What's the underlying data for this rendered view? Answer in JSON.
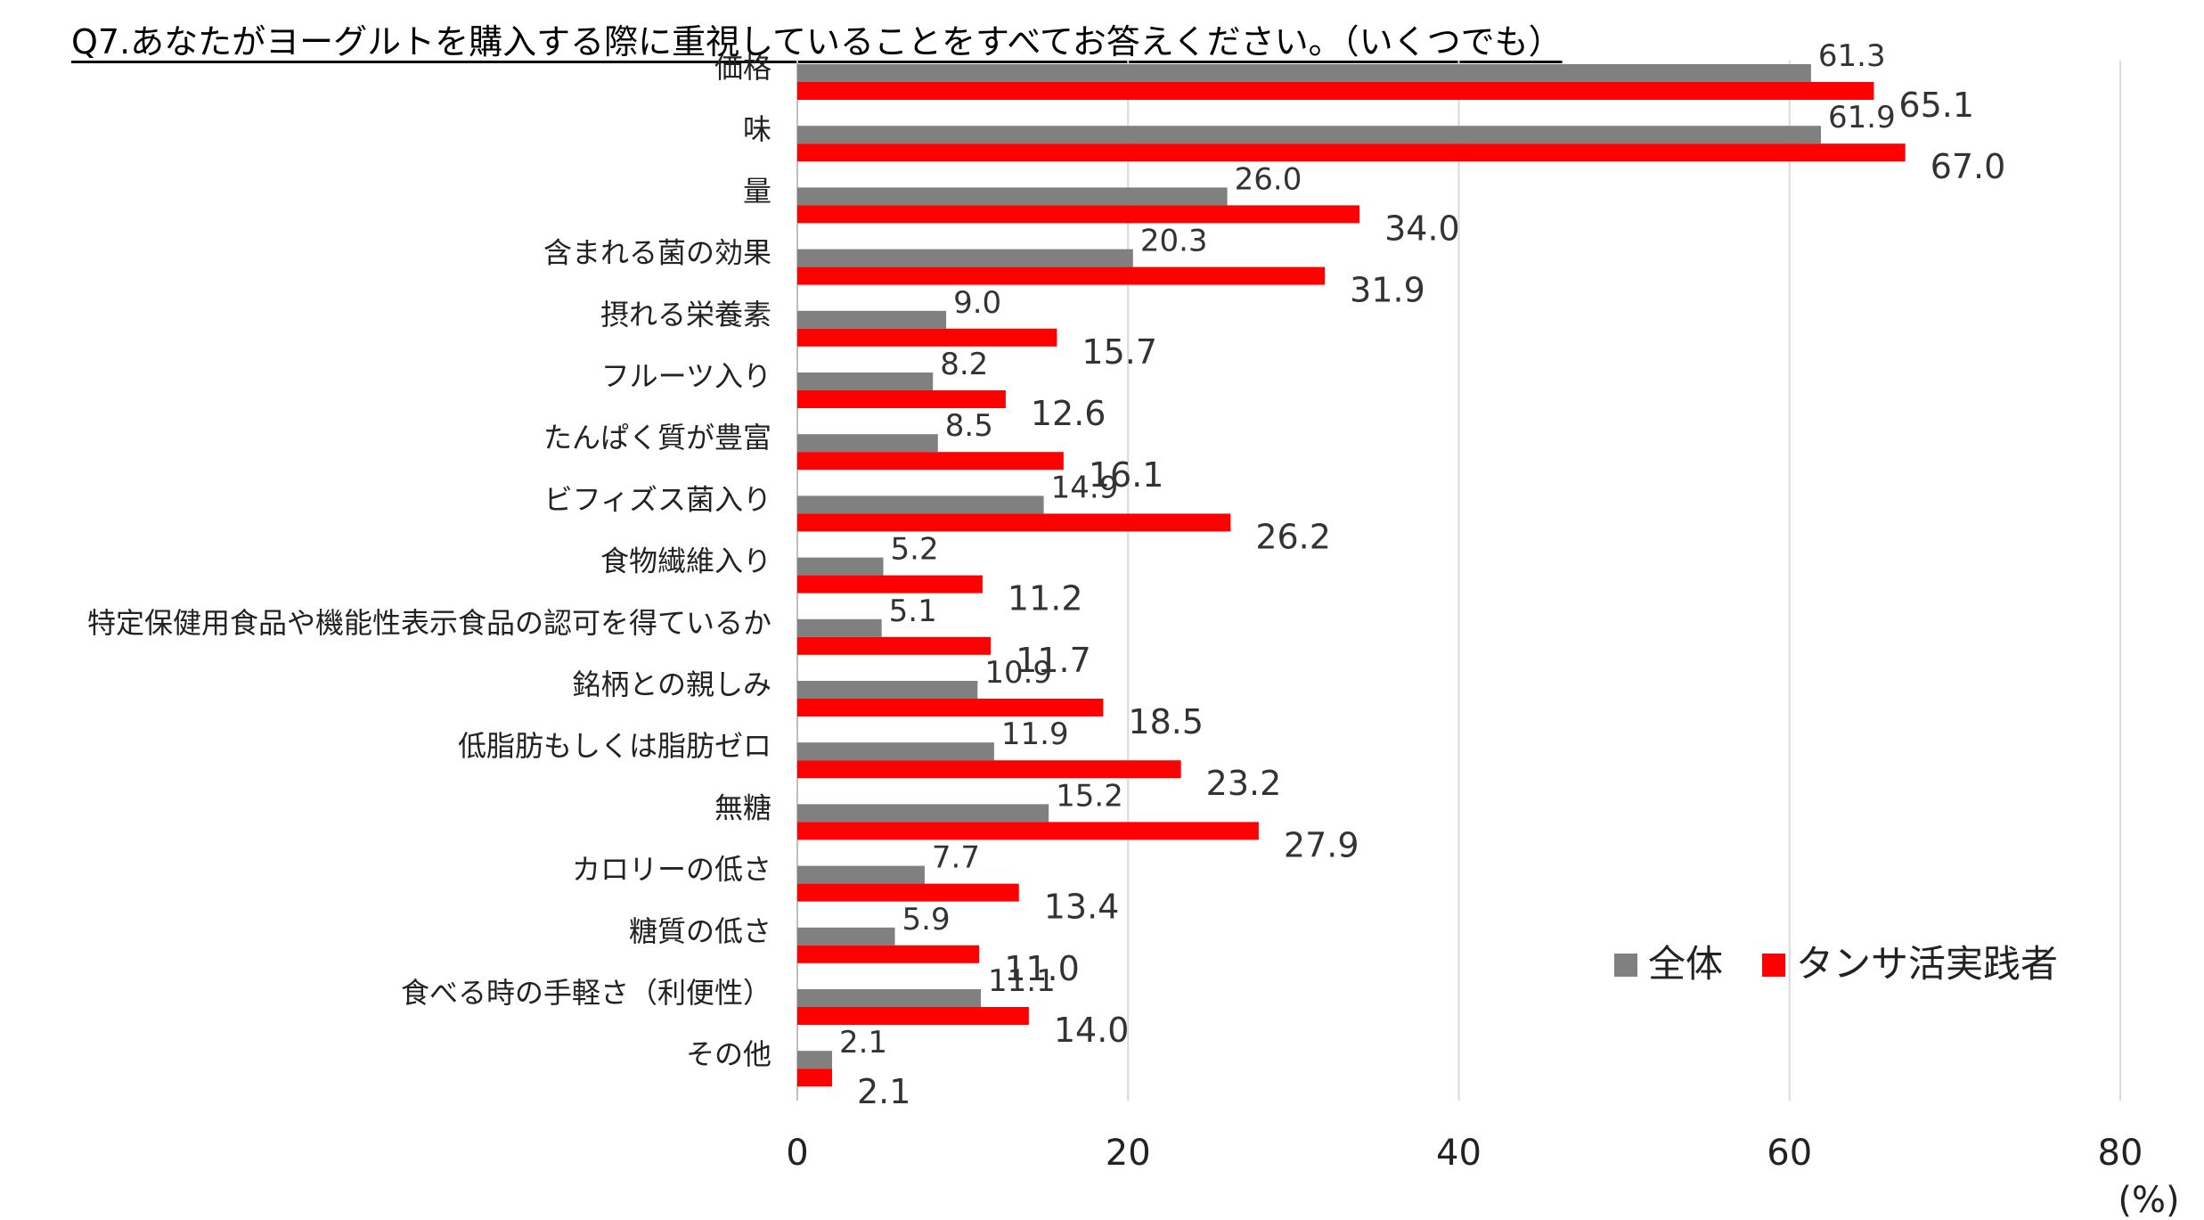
{
  "title": "Q7.あなたがヨーグルトを購入する際に重視していることをすべてお答えください。（いくつでも）",
  "chart_data": {
    "type": "bar",
    "orientation": "horizontal",
    "title": "Q7.あなたがヨーグルトを購入する際に重視していることをすべてお答えください。（いくつでも）",
    "categories": [
      "価格",
      "味",
      "量",
      "含まれる菌の効果",
      "摂れる栄養素",
      "フルーツ入り",
      "たんぱく質が豊富",
      "ビフィズス菌入り",
      "食物繊維入り",
      "特定保健用食品や機能性表示食品の認可を得ているか",
      "銘柄との親しみ",
      "低脂肪もしくは脂肪ゼロ",
      "無糖",
      "カロリーの低さ",
      "糖質の低さ",
      "食べる時の手軽さ（利便性）",
      "その他"
    ],
    "series": [
      {
        "name": "全体",
        "color": "#808080",
        "values": [
          61.3,
          61.9,
          26.0,
          20.3,
          9.0,
          8.2,
          8.5,
          14.9,
          5.2,
          5.1,
          10.9,
          11.9,
          15.2,
          7.7,
          5.9,
          11.1,
          2.1
        ]
      },
      {
        "name": "タンサ活実践者",
        "color": "#ff0000",
        "values": [
          65.1,
          67.0,
          34.0,
          31.9,
          15.7,
          12.6,
          16.1,
          26.2,
          11.2,
          11.7,
          18.5,
          23.2,
          27.9,
          13.4,
          11.0,
          14.0,
          2.1
        ]
      }
    ],
    "xlim": [
      0,
      80
    ],
    "xticks": [
      0,
      20,
      40,
      60,
      80
    ],
    "unit_label": "(%)",
    "grid": "vertical",
    "legend": "bottom-right"
  }
}
